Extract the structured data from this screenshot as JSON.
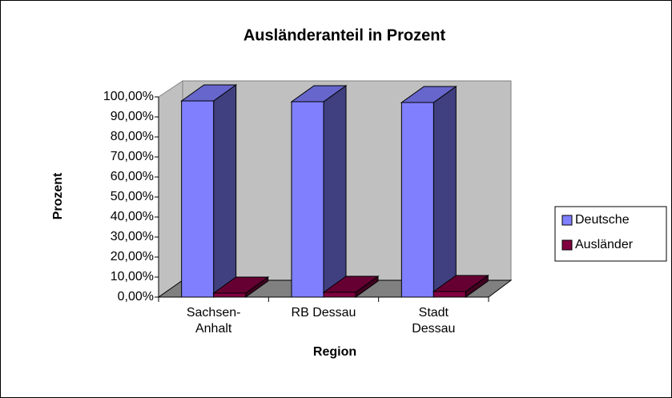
{
  "chart_data": {
    "type": "bar3d",
    "title": "Ausländeranteil in Prozent",
    "xlabel": "Region",
    "ylabel": "Prozent",
    "categories": [
      "Sachsen-Anhalt",
      "RB Dessau",
      "Stadt Dessau"
    ],
    "series": [
      {
        "name": "Deutsche",
        "color": "#8080ff",
        "values": [
          98,
          97.6,
          97.2
        ]
      },
      {
        "name": "Ausländer",
        "color": "#800040",
        "values": [
          2,
          2.4,
          2.8
        ]
      }
    ],
    "ylim": [
      0,
      100
    ],
    "yticks": [
      {
        "value": 0,
        "label": "0,00%"
      },
      {
        "value": 10,
        "label": "10,00%"
      },
      {
        "value": 20,
        "label": "20,00%"
      },
      {
        "value": 30,
        "label": "30,00%"
      },
      {
        "value": 40,
        "label": "40,00%"
      },
      {
        "value": 50,
        "label": "50,00%"
      },
      {
        "value": 60,
        "label": "60,00%"
      },
      {
        "value": 70,
        "label": "70,00%"
      },
      {
        "value": 80,
        "label": "80,00%"
      },
      {
        "value": 90,
        "label": "90,00%"
      },
      {
        "value": 100,
        "label": "100,00%"
      }
    ],
    "legend": "right"
  }
}
